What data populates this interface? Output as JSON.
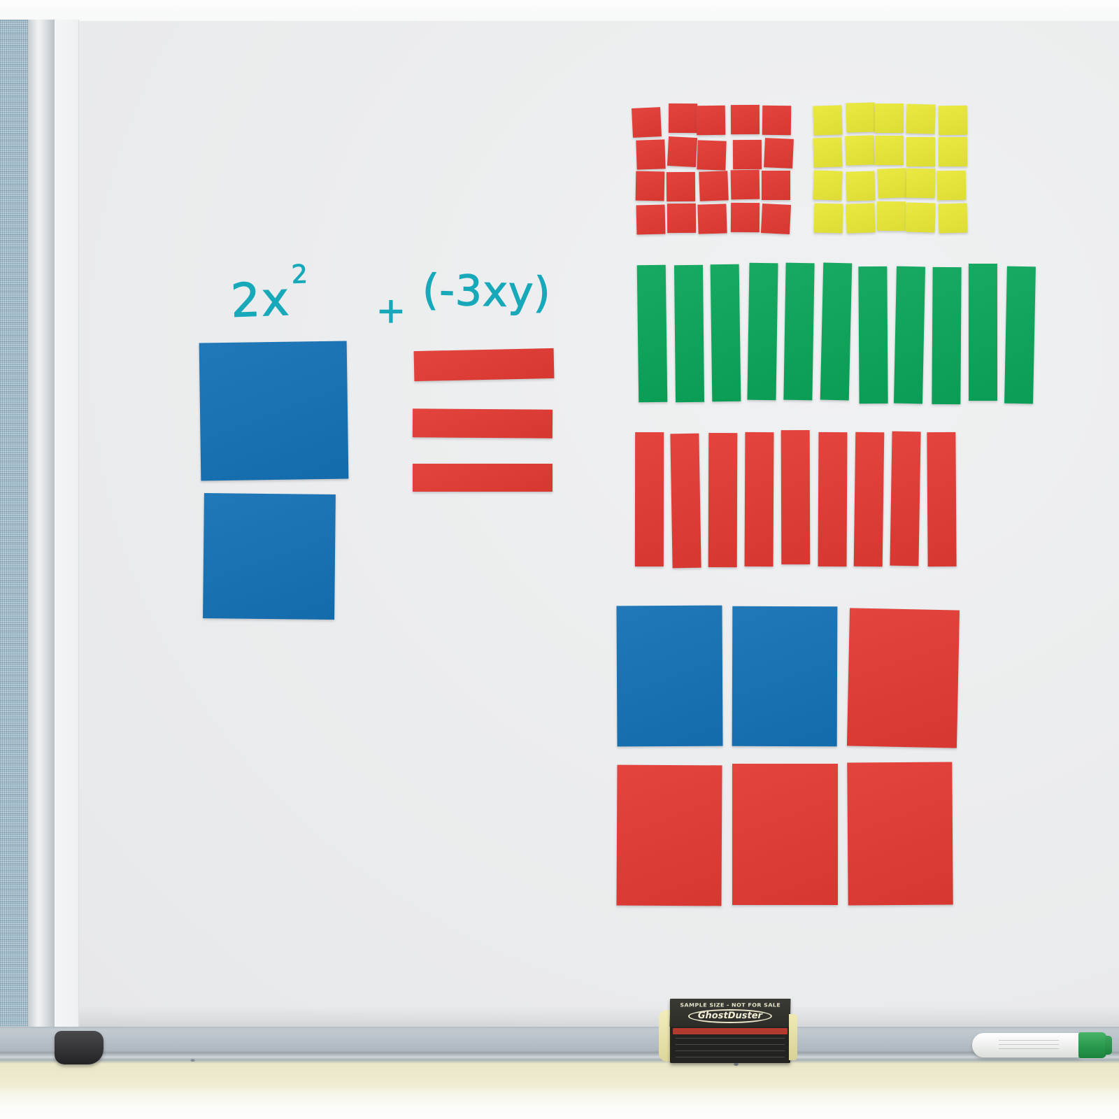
{
  "scene": {
    "kind": "photo of a whiteboard with magnetic algebra tiles",
    "handwriting": {
      "term1": "2x",
      "exponent": "2",
      "operator": "+",
      "term2": "(-3xy)",
      "ink_color": "#17a9ba"
    }
  },
  "colors": {
    "blue": "#1571b5",
    "red": "#e23a33",
    "green": "#0ba55a",
    "yellow": "#e9e838",
    "board": "#ecedee",
    "fabric_panel": "#a3bdca",
    "tray": "#b4bdc3",
    "lower_wall": "#edeacb"
  },
  "tiles": {
    "x_squared_blue": {
      "count": 2
    },
    "xy_red_strips": {
      "count": 3
    },
    "unit_red_grid": {
      "rows": 4,
      "cols": 5
    },
    "unit_yellow_grid": {
      "rows": 4,
      "cols": 5
    },
    "x_green_strips": {
      "count": 11
    },
    "x_red_strips": {
      "count": 9
    },
    "large_row_top": [
      "blue",
      "blue",
      "red"
    ],
    "large_row_bottom": [
      "red",
      "red",
      "red"
    ]
  },
  "eraser": {
    "sample_text": "SAMPLE SIZE - NOT FOR SALE",
    "brand": "GhostDuster"
  },
  "marker": {
    "cap_color": "#27994c"
  }
}
